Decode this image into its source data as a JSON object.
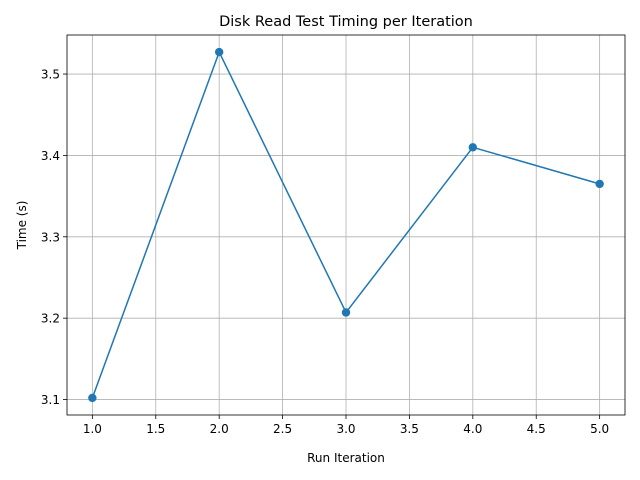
{
  "chart_data": {
    "type": "line",
    "title": "Disk Read Test Timing per Iteration",
    "xlabel": "Run Iteration",
    "ylabel": "Time (s)",
    "x": [
      1.0,
      2.0,
      3.0,
      4.0,
      5.0
    ],
    "series": [
      {
        "values": [
          3.102,
          3.527,
          3.207,
          3.41,
          3.365
        ],
        "color": "#1f77b4",
        "marker": "circle"
      }
    ],
    "xlim": [
      0.8,
      5.2
    ],
    "ylim": [
      3.081,
      3.548
    ],
    "xticks": [
      1.0,
      1.5,
      2.0,
      2.5,
      3.0,
      3.5,
      4.0,
      4.5,
      5.0
    ],
    "xtick_labels": [
      "1.0",
      "1.5",
      "2.0",
      "2.5",
      "3.0",
      "3.5",
      "4.0",
      "4.5",
      "5.0"
    ],
    "yticks": [
      3.1,
      3.2,
      3.3,
      3.4,
      3.5
    ],
    "ytick_labels": [
      "3.1",
      "3.2",
      "3.3",
      "3.4",
      "3.5"
    ],
    "grid": true,
    "legend": false
  }
}
